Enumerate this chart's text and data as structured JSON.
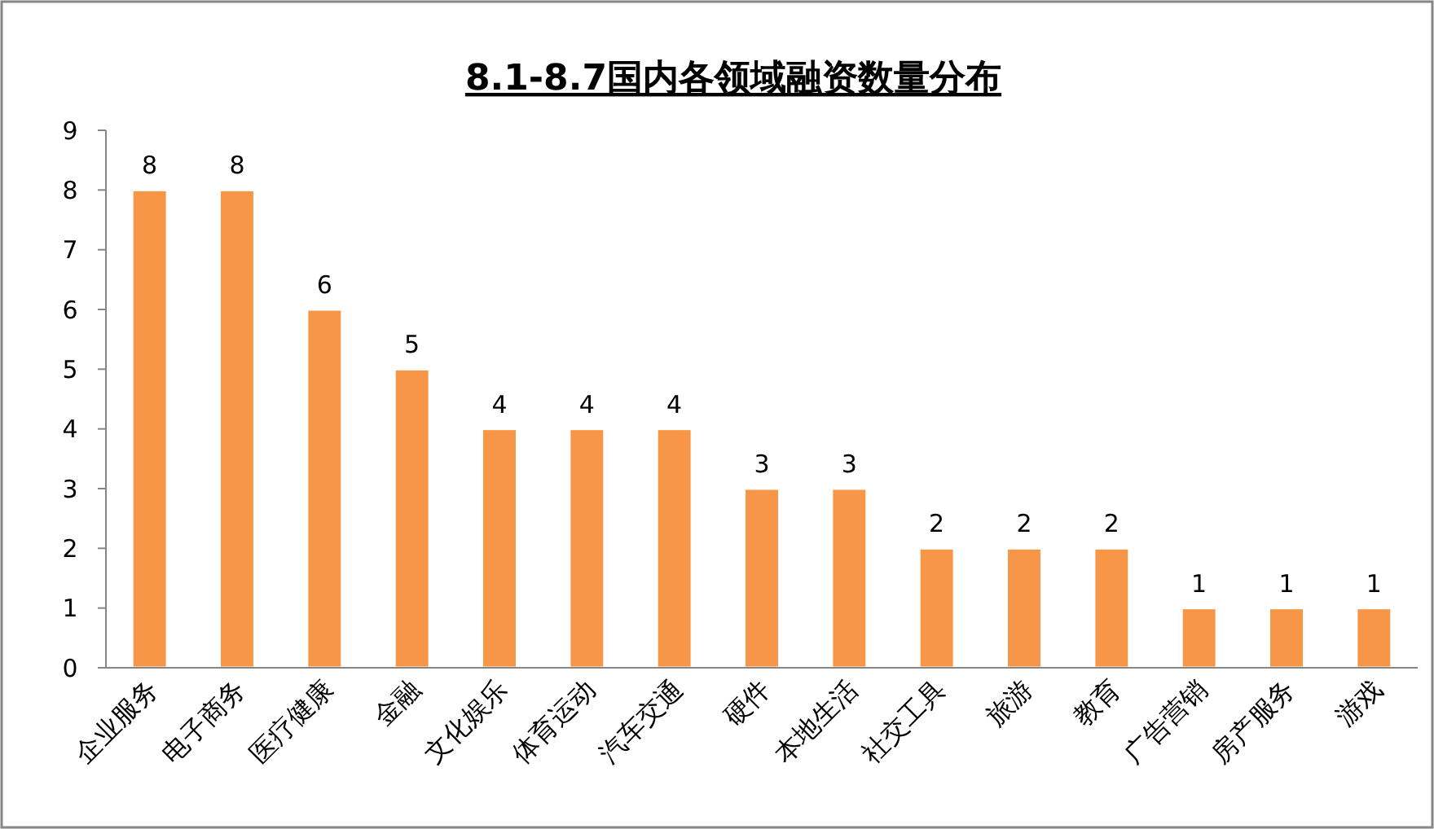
{
  "chart_data": {
    "type": "bar",
    "title": "8.1-8.7国内各领域融资数量分布",
    "categories": [
      "企业服务",
      "电子商务",
      "医疗健康",
      "金融",
      "文化娱乐",
      "体育运动",
      "汽车交通",
      "硬件",
      "本地生活",
      "社交工具",
      "旅游",
      "教育",
      "广告营销",
      "房产服务",
      "游戏"
    ],
    "values": [
      8,
      8,
      6,
      5,
      4,
      4,
      4,
      3,
      3,
      2,
      2,
      2,
      1,
      1,
      1
    ],
    "color": "#f79646",
    "ylim": [
      0,
      9
    ],
    "yticks": [
      0,
      1,
      2,
      3,
      4,
      5,
      6,
      7,
      8,
      9
    ],
    "data_labels": true
  }
}
